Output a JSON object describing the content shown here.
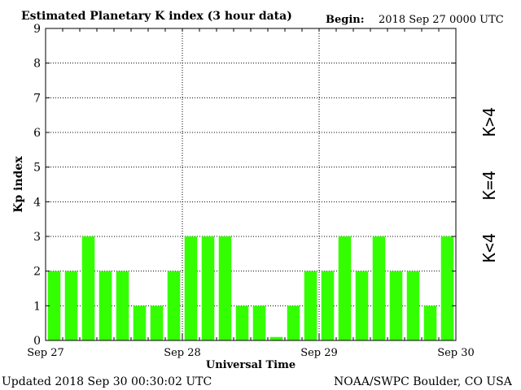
{
  "chart_data": {
    "type": "bar",
    "title": "Estimated Planetary K index (3 hour data)",
    "begin_label": "Begin:",
    "begin_value": "2018 Sep 27 0000 UTC",
    "xlabel": "Universal Time",
    "ylabel": "Kp index",
    "ylim": [
      0,
      9
    ],
    "yticks": [
      "0",
      "1",
      "2",
      "3",
      "4",
      "5",
      "6",
      "7",
      "8",
      "9"
    ],
    "xlim": [
      0,
      24
    ],
    "xticks": [
      {
        "at": 0,
        "label": "Sep 27"
      },
      {
        "at": 8,
        "label": "Sep 28"
      },
      {
        "at": 16,
        "label": "Sep 29"
      },
      {
        "at": 24,
        "label": "Sep 30"
      }
    ],
    "values": [
      2,
      2,
      3,
      2,
      2,
      1,
      1,
      2,
      3,
      3,
      3,
      1,
      1,
      0.1,
      1,
      2,
      2,
      3,
      2,
      3,
      2,
      2,
      1,
      3
    ],
    "grid": true,
    "legend": {
      "placement": "right",
      "items": [
        {
          "label": "K<4",
          "color": "#33ff00"
        },
        {
          "label": "K=4",
          "color": "#ffcc00"
        },
        {
          "label": "K>4",
          "color": "#ff3300"
        }
      ]
    },
    "bar_color": "#33ff00"
  },
  "footer": {
    "updated": "Updated 2018 Sep 30 00:30:02 UTC",
    "source": "NOAA/SWPC Boulder, CO USA"
  }
}
